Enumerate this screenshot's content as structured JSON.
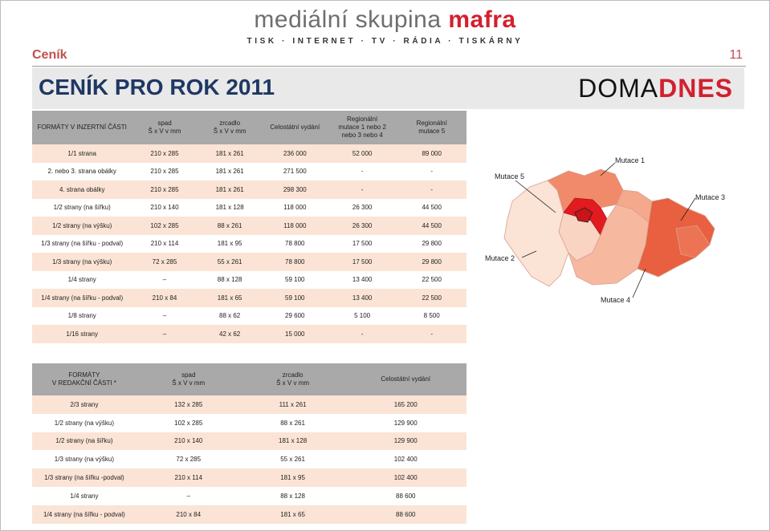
{
  "brand": {
    "name_prefix": "mediální skupina ",
    "name_suffix": "mafra",
    "tagline": "TISK · INTERNET · TV · RÁDIA · TISKÁRNY"
  },
  "header": {
    "section": "Ceník",
    "page_number": "11"
  },
  "title": "CENÍK PRO ROK 2011",
  "logo": {
    "part1": "DOMA",
    "part2": "DNES"
  },
  "table1": {
    "headers": [
      "FORMÁTY V INZERTNÍ ČÁSTI",
      "spad\nŠ x V v mm",
      "zrcadlo\nŠ x V v mm",
      "Celostátní vydání",
      "Regionální\nmutace 1 nebo 2\nnebo 3 nebo 4",
      "Regionální\nmutace 5"
    ],
    "rows": [
      [
        "1/1 strana",
        "210 x 285",
        "181 x 261",
        "236 000",
        "52 000",
        "89 000"
      ],
      [
        "2. nebo 3. strana obálky",
        "210 x 285",
        "181 x 261",
        "271 500",
        "-",
        "-"
      ],
      [
        "4. strana obálky",
        "210 x 285",
        "181 x 261",
        "298 300",
        "-",
        "-"
      ],
      [
        "1/2 strany (na šířku)",
        "210 x 140",
        "181 x 128",
        "118 000",
        "26 300",
        "44 500"
      ],
      [
        "1/2 strany (na výšku)",
        "102 x 285",
        "88 x 261",
        "118 000",
        "26 300",
        "44 500"
      ],
      [
        "1/3 strany (na šířku - podval)",
        "210 x 114",
        "181 x 95",
        "78 800",
        "17 500",
        "29 800"
      ],
      [
        "1/3 strany (na výšku)",
        "72 x 285",
        "55 x 261",
        "78 800",
        "17 500",
        "29 800"
      ],
      [
        "1/4 strany",
        "–",
        "88 x 128",
        "59 100",
        "13 400",
        "22 500"
      ],
      [
        "1/4 strany (na šířku - podval)",
        "210 x 84",
        "181 x 65",
        "59 100",
        "13 400",
        "22 500"
      ],
      [
        "1/8 strany",
        "–",
        "88 x 62",
        "29 600",
        "5 100",
        "8 500"
      ],
      [
        "1/16 strany",
        "–",
        "42 x 62",
        "15 000",
        "-",
        "-"
      ]
    ]
  },
  "table2": {
    "headers": [
      "FORMÁTY\nV REDAKČNÍ ČÁSTI *",
      "spad\nŠ x V v mm",
      "zrcadlo\nŠ x V v mm",
      "Celostátní vydání"
    ],
    "rows": [
      [
        "2/3 strany",
        "132 x 285",
        "111 x 261",
        "165 200"
      ],
      [
        "1/2 strany (na výšku)",
        "102 x 285",
        "88 x 261",
        "129 900"
      ],
      [
        "1/2 strany (na šířku)",
        "210 x 140",
        "181 x 128",
        "129 900"
      ],
      [
        "1/3 strany (na výšku)",
        "72 x 285",
        "55 x 261",
        "102 400"
      ],
      [
        "1/3 strany (na šířku -podval)",
        "210 x 114",
        "181 x 95",
        "102 400"
      ],
      [
        "1/4 strany",
        "–",
        "88 x 128",
        "88 600"
      ],
      [
        "1/4 strany (na šířku - podval)",
        "210 x 84",
        "181 x 65",
        "88 600"
      ]
    ]
  },
  "map": {
    "labels": [
      "Mutace 1",
      "Mutace 2",
      "Mutace 3",
      "Mutace 4",
      "Mutace 5"
    ],
    "colors": {
      "mutace1": "#f08a6a",
      "mutace2": "#fbe3d6",
      "mutace3": "#e8603f",
      "mutace4": "#f6b9a0",
      "mutace5": "#e11b1f"
    }
  }
}
